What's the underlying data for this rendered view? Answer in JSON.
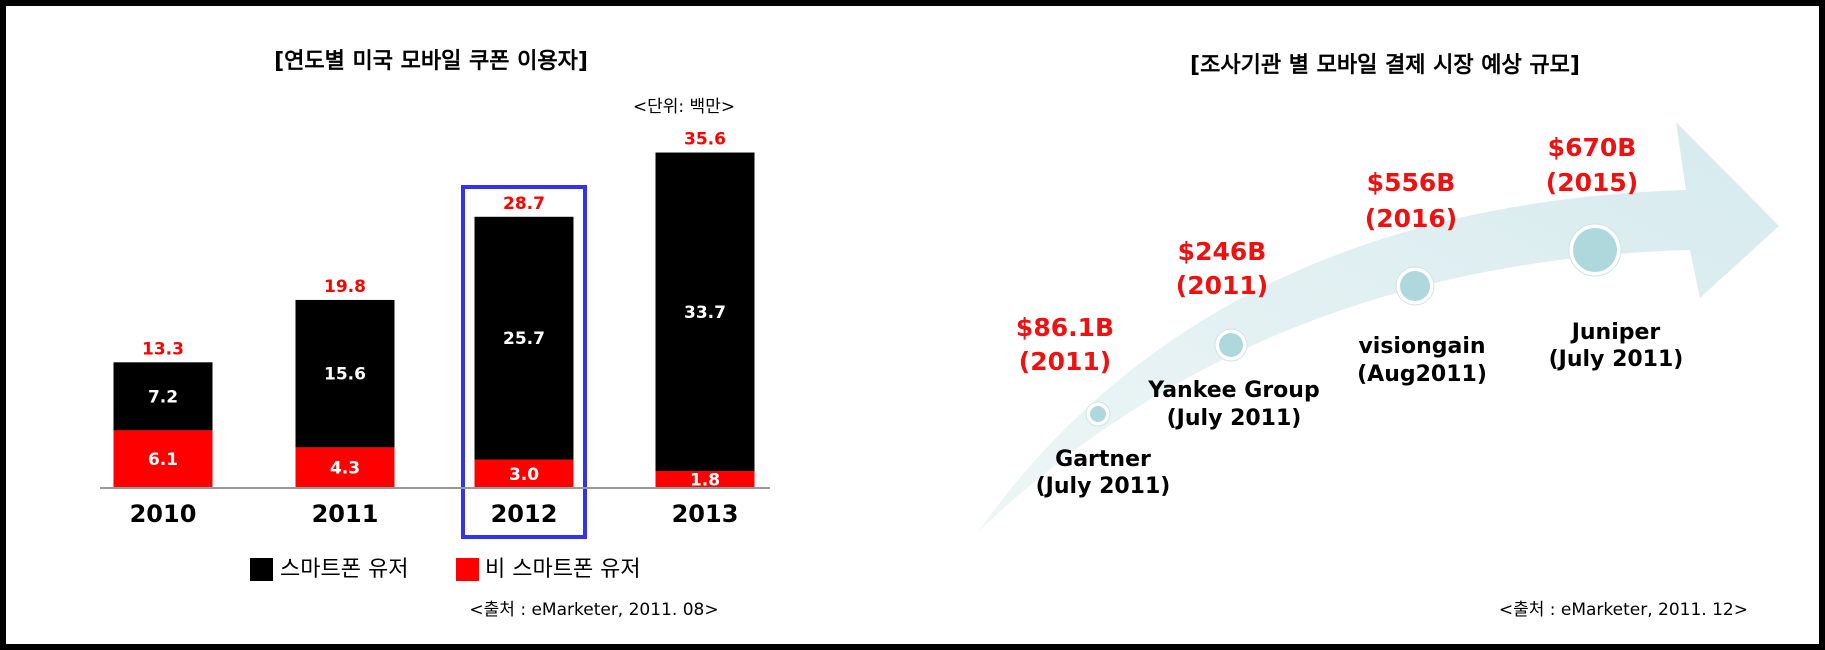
{
  "chart_data": {
    "type": "bar",
    "stacked": true,
    "title": "[연도별 미국 모바일 쿠폰 이용자]",
    "unit": "<단위: 백만>",
    "categories": [
      "2010",
      "2011",
      "2012",
      "2013"
    ],
    "series": [
      {
        "name": "스마트폰 유저",
        "color": "#000000",
        "values": [
          7.2,
          15.6,
          25.7,
          33.7
        ]
      },
      {
        "name": "비 스마트폰 유저",
        "color": "#ff0000",
        "values": [
          6.1,
          4.3,
          3.0,
          1.8
        ],
        "value_labels": [
          "6.1",
          "4.3",
          "3.0",
          "1.8"
        ]
      }
    ],
    "totals": [
      13.3,
      19.8,
      28.7,
      35.6
    ],
    "ylim": [
      0,
      40
    ],
    "highlight": "2012",
    "source": "<출처 : eMarketer, 2011. 08>"
  },
  "forecast": {
    "title": "[조사기관 별 모바일 결제 시장 예상 규모]",
    "items": [
      {
        "amount": "$86.1B",
        "year": "(2011)",
        "org": "Gartner",
        "date": "(July 2011)"
      },
      {
        "amount": "$246B",
        "year": "(2011)",
        "org": "Yankee Group",
        "date": "(July 2011)"
      },
      {
        "amount": "$556B",
        "year": "(2016)",
        "org": "visiongain",
        "date": "(Aug2011)"
      },
      {
        "amount": "$670B",
        "year": "(2015)",
        "org": "Juniper",
        "date": "(July 2011)"
      }
    ],
    "source": "<출처 : eMarketer, 2011. 12>"
  }
}
